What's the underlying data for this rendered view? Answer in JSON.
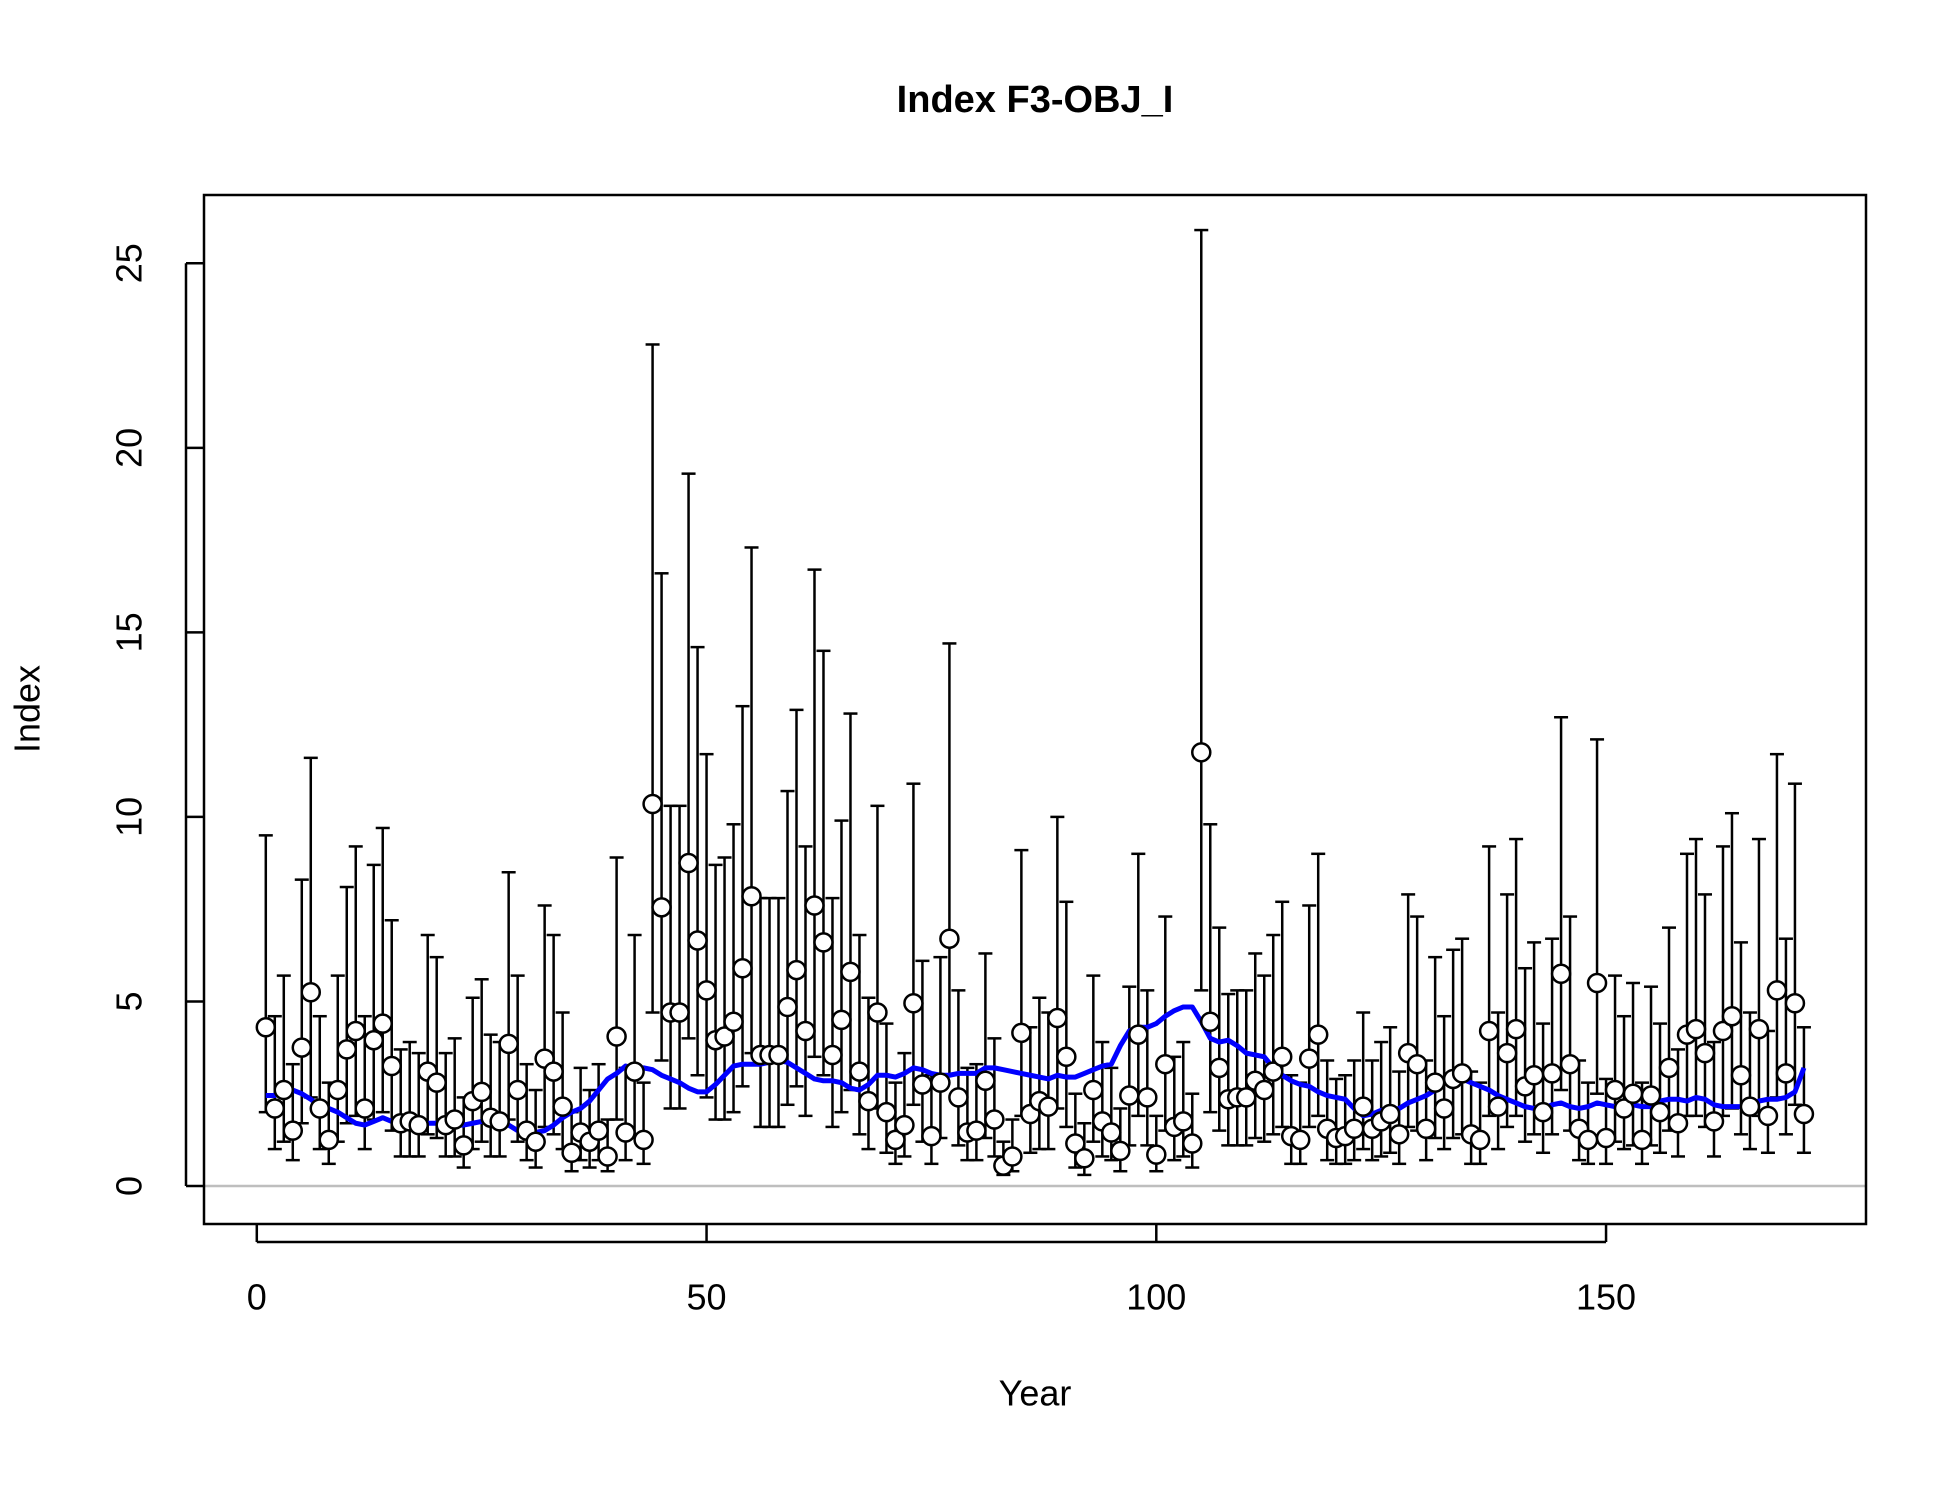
{
  "chart_data": {
    "type": "errorbar",
    "title": "Index F3-OBJ_I",
    "x_label": "Year",
    "y_label": "Index",
    "x": [
      1,
      2,
      3,
      4,
      5,
      6,
      7,
      8,
      9,
      10,
      11,
      12,
      13,
      14,
      15,
      16,
      17,
      18,
      19,
      20,
      21,
      22,
      23,
      24,
      25,
      26,
      27,
      28,
      29,
      30,
      31,
      32,
      33,
      34,
      35,
      36,
      37,
      38,
      39,
      40,
      41,
      42,
      43,
      44,
      45,
      46,
      47,
      48,
      49,
      50,
      51,
      52,
      53,
      54,
      55,
      56,
      57,
      58,
      59,
      60,
      61,
      62,
      63,
      64,
      65,
      66,
      67,
      68,
      69,
      70,
      71,
      72,
      73,
      74,
      75,
      76,
      77,
      78,
      79,
      80,
      81,
      82,
      83,
      84,
      85,
      86,
      87,
      88,
      89,
      90,
      91,
      92,
      93,
      94,
      95,
      96,
      97,
      98,
      99,
      100,
      101,
      102,
      103,
      104,
      105,
      106,
      107,
      108,
      109,
      110,
      111,
      112,
      113,
      114,
      115,
      116,
      117,
      118,
      119,
      120,
      121,
      122,
      123,
      124,
      125,
      126,
      127,
      128,
      129,
      130,
      131,
      132,
      133,
      134,
      135,
      136,
      137,
      138,
      139,
      140,
      141,
      142,
      143,
      144,
      145,
      146,
      147,
      148,
      149,
      150,
      151,
      152,
      153,
      154,
      155,
      156,
      157,
      158,
      159,
      160,
      161,
      162,
      163,
      164,
      165,
      166,
      167,
      168,
      169,
      170,
      171,
      172
    ],
    "values": [
      4.3,
      2.1,
      2.6,
      1.5,
      3.75,
      5.25,
      2.1,
      1.25,
      2.6,
      3.7,
      4.2,
      2.1,
      3.95,
      4.4,
      3.25,
      1.7,
      1.75,
      1.65,
      3.1,
      2.8,
      1.65,
      1.8,
      1.1,
      2.3,
      2.55,
      1.85,
      1.75,
      3.85,
      2.6,
      1.5,
      1.2,
      3.45,
      3.1,
      2.15,
      0.9,
      1.45,
      1.2,
      1.5,
      0.8,
      4.05,
      1.45,
      3.1,
      1.25,
      10.35,
      7.55,
      4.7,
      4.7,
      8.75,
      6.65,
      5.3,
      3.95,
      4.05,
      4.45,
      5.9,
      7.85,
      3.55,
      3.55,
      3.55,
      4.85,
      5.85,
      4.2,
      7.6,
      6.6,
      3.55,
      4.5,
      5.8,
      3.1,
      2.3,
      4.7,
      2.0,
      1.25,
      1.65,
      4.95,
      2.75,
      1.35,
      2.8,
      6.7,
      2.4,
      1.45,
      1.5,
      2.85,
      1.8,
      0.55,
      0.8,
      4.15,
      1.95,
      2.3,
      2.15,
      4.55,
      3.5,
      1.15,
      0.75,
      2.6,
      1.75,
      1.45,
      0.95,
      2.45,
      4.1,
      2.4,
      0.85,
      3.3,
      1.6,
      1.75,
      1.15,
      11.75,
      4.45,
      3.2,
      2.35,
      2.4,
      2.4,
      2.85,
      2.6,
      3.1,
      3.5,
      1.35,
      1.25,
      3.45,
      4.1,
      1.55,
      1.3,
      1.35,
      1.55,
      2.15,
      1.55,
      1.75,
      1.95,
      1.4,
      3.6,
      3.3,
      1.55,
      2.8,
      2.1,
      2.9,
      3.05,
      1.4,
      1.25,
      4.2,
      2.15,
      3.6,
      4.25,
      2.7,
      3.0,
      2.0,
      3.05,
      5.75,
      3.3,
      1.55,
      1.25,
      5.5,
      1.3,
      2.6,
      2.1,
      2.5,
      1.25,
      2.45,
      2.0,
      3.2,
      1.7,
      4.1,
      4.25,
      3.6,
      1.75,
      4.2,
      4.6,
      3.0,
      2.15,
      4.25,
      1.9,
      5.3,
      3.05,
      4.95,
      1.95
    ],
    "lower": [
      2.0,
      1.0,
      1.2,
      0.7,
      1.7,
      2.4,
      1.0,
      0.6,
      1.2,
      1.7,
      1.9,
      1.0,
      1.8,
      2.0,
      1.5,
      0.8,
      0.8,
      0.8,
      1.4,
      1.3,
      0.8,
      0.8,
      0.5,
      1.0,
      1.2,
      0.8,
      0.8,
      1.8,
      1.2,
      0.7,
      0.5,
      1.6,
      1.4,
      1.0,
      0.4,
      0.7,
      0.5,
      0.7,
      0.4,
      1.8,
      0.7,
      1.4,
      0.6,
      4.7,
      3.4,
      2.1,
      2.1,
      4.0,
      3.0,
      2.4,
      1.8,
      1.8,
      2.0,
      2.7,
      3.6,
      1.6,
      1.6,
      1.6,
      2.2,
      2.7,
      1.9,
      3.5,
      3.0,
      1.6,
      2.0,
      2.6,
      1.4,
      1.0,
      2.1,
      0.9,
      0.6,
      0.8,
      2.2,
      1.2,
      0.6,
      1.3,
      3.0,
      1.1,
      0.7,
      0.7,
      1.3,
      0.8,
      0.3,
      0.4,
      1.9,
      0.9,
      1.0,
      1.0,
      2.1,
      1.6,
      0.5,
      0.3,
      1.2,
      0.8,
      0.7,
      0.4,
      1.1,
      1.9,
      1.1,
      0.4,
      1.5,
      0.7,
      0.8,
      0.5,
      5.3,
      2.0,
      1.5,
      1.1,
      1.1,
      1.1,
      1.3,
      1.2,
      1.4,
      1.6,
      0.6,
      0.6,
      1.6,
      1.9,
      0.7,
      0.6,
      0.6,
      0.7,
      1.0,
      0.7,
      0.8,
      0.9,
      0.6,
      1.6,
      1.5,
      0.7,
      1.3,
      1.0,
      1.3,
      1.4,
      0.6,
      0.6,
      1.9,
      1.0,
      1.6,
      1.9,
      1.2,
      1.4,
      0.9,
      1.4,
      2.6,
      1.5,
      0.7,
      0.6,
      2.5,
      0.6,
      1.2,
      1.0,
      1.1,
      0.6,
      1.1,
      0.9,
      1.5,
      0.8,
      1.9,
      1.9,
      1.6,
      0.8,
      1.9,
      2.1,
      1.4,
      1.0,
      1.9,
      0.9,
      2.4,
      1.4,
      2.2,
      0.9
    ],
    "upper": [
      9.5,
      4.6,
      5.7,
      3.3,
      8.3,
      11.6,
      4.6,
      2.8,
      5.7,
      8.1,
      9.2,
      4.6,
      8.7,
      9.7,
      7.2,
      3.7,
      3.9,
      3.6,
      6.8,
      6.2,
      3.6,
      4.0,
      2.4,
      5.1,
      5.6,
      4.1,
      3.9,
      8.5,
      5.7,
      3.3,
      2.6,
      7.6,
      6.8,
      4.7,
      2.0,
      3.2,
      2.6,
      3.3,
      1.8,
      8.9,
      3.2,
      6.8,
      2.8,
      22.8,
      16.6,
      10.3,
      10.3,
      19.3,
      14.6,
      11.7,
      8.7,
      8.9,
      9.8,
      13.0,
      17.3,
      7.8,
      7.8,
      7.8,
      10.7,
      12.9,
      9.2,
      16.7,
      14.5,
      7.8,
      9.9,
      12.8,
      6.8,
      5.1,
      10.3,
      4.4,
      2.8,
      3.6,
      10.9,
      6.1,
      3.0,
      6.2,
      14.7,
      5.3,
      3.2,
      3.3,
      6.3,
      4.0,
      1.2,
      1.8,
      9.1,
      4.3,
      5.1,
      4.7,
      10.0,
      7.7,
      2.5,
      1.7,
      5.7,
      3.9,
      3.2,
      2.1,
      5.4,
      9.0,
      5.3,
      1.9,
      7.3,
      3.5,
      3.9,
      2.5,
      25.9,
      9.8,
      7.0,
      5.2,
      5.3,
      5.3,
      6.3,
      5.7,
      6.8,
      7.7,
      3.0,
      2.8,
      7.6,
      9.0,
      3.4,
      2.9,
      3.0,
      3.4,
      4.7,
      3.4,
      3.9,
      4.3,
      3.1,
      7.9,
      7.3,
      3.4,
      6.2,
      4.6,
      6.4,
      6.7,
      3.1,
      2.8,
      9.2,
      4.7,
      7.9,
      9.4,
      5.9,
      6.6,
      4.4,
      6.7,
      12.7,
      7.3,
      3.4,
      2.8,
      12.1,
      2.9,
      5.7,
      4.6,
      5.5,
      2.8,
      5.4,
      4.4,
      7.0,
      3.7,
      9.0,
      9.4,
      7.9,
      3.9,
      9.2,
      10.1,
      6.6,
      4.7,
      9.4,
      4.2,
      11.7,
      6.7,
      10.9,
      4.3
    ],
    "fit": {
      "color": "#0000ff",
      "values": [
        2.45,
        2.45,
        2.55,
        2.6,
        2.5,
        2.35,
        2.15,
        2.1,
        2.0,
        1.85,
        1.7,
        1.65,
        1.75,
        1.85,
        1.75,
        1.7,
        1.7,
        1.7,
        1.7,
        1.7,
        1.7,
        1.65,
        1.65,
        1.7,
        1.75,
        1.85,
        1.75,
        1.65,
        1.5,
        1.45,
        1.45,
        1.5,
        1.65,
        1.85,
        2.0,
        2.1,
        2.3,
        2.6,
        2.9,
        3.05,
        3.25,
        3.2,
        3.2,
        3.15,
        3.0,
        2.9,
        2.8,
        2.65,
        2.55,
        2.55,
        2.75,
        3.0,
        3.25,
        3.3,
        3.3,
        3.3,
        3.35,
        3.4,
        3.35,
        3.2,
        3.05,
        2.9,
        2.85,
        2.85,
        2.8,
        2.65,
        2.6,
        2.75,
        3.0,
        3.0,
        2.95,
        3.05,
        3.2,
        3.15,
        3.05,
        3.0,
        3.0,
        3.05,
        3.05,
        3.05,
        3.2,
        3.2,
        3.15,
        3.1,
        3.05,
        3.0,
        2.95,
        2.9,
        3.0,
        2.95,
        2.95,
        3.05,
        3.15,
        3.25,
        3.3,
        3.8,
        4.2,
        4.3,
        4.3,
        4.4,
        4.6,
        4.75,
        4.85,
        4.85,
        4.45,
        4.0,
        3.9,
        3.95,
        3.8,
        3.6,
        3.55,
        3.5,
        3.2,
        3.0,
        2.85,
        2.75,
        2.7,
        2.55,
        2.45,
        2.4,
        2.35,
        2.1,
        1.9,
        1.95,
        2.05,
        2.05,
        2.1,
        2.25,
        2.35,
        2.45,
        2.6,
        2.8,
        2.9,
        2.9,
        2.8,
        2.7,
        2.6,
        2.45,
        2.35,
        2.25,
        2.15,
        2.1,
        2.1,
        2.2,
        2.25,
        2.15,
        2.1,
        2.15,
        2.25,
        2.2,
        2.15,
        2.1,
        2.2,
        2.15,
        2.15,
        2.3,
        2.35,
        2.35,
        2.3,
        2.4,
        2.35,
        2.2,
        2.15,
        2.15,
        2.15,
        2.2,
        2.3,
        2.35,
        2.35,
        2.4,
        2.55,
        3.2
      ]
    },
    "point_color": "#ffffff",
    "bar_color": "#000000",
    "hline": 0,
    "hline_color": "#bebebe",
    "xlim": [
      -5.87,
      178.9
    ],
    "ylim": [
      -1.03,
      26.85
    ],
    "xticks": [
      0,
      50,
      100,
      150
    ],
    "yticks": [
      0,
      5,
      10,
      15,
      20,
      25
    ]
  }
}
